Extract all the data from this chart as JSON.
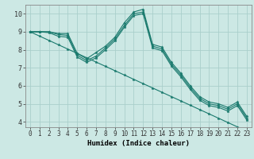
{
  "xlabel": "Humidex (Indice chaleur)",
  "xlim": [
    -0.5,
    23.5
  ],
  "ylim": [
    3.7,
    10.5
  ],
  "yticks": [
    4,
    5,
    6,
    7,
    8,
    9,
    10
  ],
  "xticks": [
    0,
    1,
    2,
    3,
    4,
    5,
    6,
    7,
    8,
    9,
    10,
    11,
    12,
    13,
    14,
    15,
    16,
    17,
    18,
    19,
    20,
    21,
    22,
    23
  ],
  "bg_color": "#cce8e4",
  "grid_color": "#aacfcb",
  "line_color": "#1a7a6e",
  "series1": [
    9.0,
    9.0,
    9.0,
    8.9,
    8.9,
    7.8,
    7.5,
    7.85,
    8.2,
    8.7,
    9.5,
    10.1,
    10.25,
    8.3,
    8.15,
    7.3,
    6.7,
    6.0,
    5.4,
    5.1,
    5.0,
    4.8,
    5.1,
    4.3
  ],
  "series2": [
    9.0,
    9.0,
    9.0,
    8.85,
    8.8,
    7.7,
    7.4,
    7.65,
    8.1,
    8.6,
    9.35,
    10.0,
    10.1,
    8.2,
    8.05,
    7.2,
    6.6,
    5.9,
    5.3,
    5.0,
    4.9,
    4.7,
    5.0,
    4.2
  ],
  "series3": [
    9.0,
    9.0,
    8.95,
    8.75,
    8.7,
    7.6,
    7.3,
    7.55,
    8.0,
    8.5,
    9.25,
    9.9,
    10.0,
    8.1,
    7.95,
    7.1,
    6.5,
    5.8,
    5.2,
    4.9,
    4.8,
    4.6,
    4.9,
    4.1
  ],
  "series_diagonal": [
    9.0,
    8.76,
    8.52,
    8.28,
    8.04,
    7.8,
    7.56,
    7.32,
    7.08,
    6.84,
    6.6,
    6.36,
    6.12,
    5.88,
    5.64,
    5.4,
    5.16,
    4.92,
    4.68,
    4.44,
    4.2,
    3.96,
    3.72,
    3.48
  ],
  "tick_fontsize": 5.5,
  "xlabel_fontsize": 6.5
}
